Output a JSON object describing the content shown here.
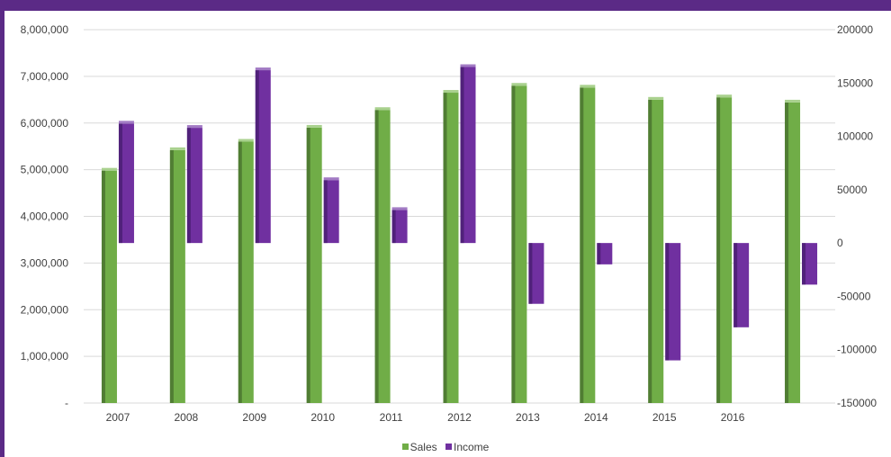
{
  "chart_data": {
    "type": "bar",
    "title": "",
    "categories": [
      "2007",
      "2008",
      "2009",
      "2010",
      "2011",
      "2012",
      "2013",
      "2014",
      "2015",
      "2016",
      ""
    ],
    "series": [
      {
        "name": "Sales",
        "axis": "left",
        "color": "#70ad47",
        "values": [
          4980000,
          5420000,
          5600000,
          5900000,
          6280000,
          6650000,
          6800000,
          6760000,
          6500000,
          6550000,
          6440000
        ]
      },
      {
        "name": "Income",
        "axis": "right",
        "color": "#7030a0",
        "values": [
          112000,
          108000,
          162000,
          59000,
          31000,
          165000,
          -57000,
          -20000,
          -110000,
          -79000,
          -39000
        ]
      }
    ],
    "y_left": {
      "lim": [
        0,
        8000000
      ],
      "ticks": [
        0,
        1000000,
        2000000,
        3000000,
        4000000,
        5000000,
        6000000,
        7000000,
        8000000
      ],
      "tick_labels": [
        "-",
        "1,000,000",
        "2,000,000",
        "3,000,000",
        "4,000,000",
        "5,000,000",
        "6,000,000",
        "7,000,000",
        "8,000,000"
      ]
    },
    "y_right": {
      "lim": [
        -150000,
        200000
      ],
      "ticks": [
        -150000,
        -100000,
        -50000,
        0,
        50000,
        100000,
        150000,
        200000
      ],
      "tick_labels": [
        "-150000",
        "-100000",
        "-50000",
        "0",
        "50000",
        "100000",
        "150000",
        "200000"
      ]
    },
    "grid": true,
    "legend_position": "bottom"
  }
}
